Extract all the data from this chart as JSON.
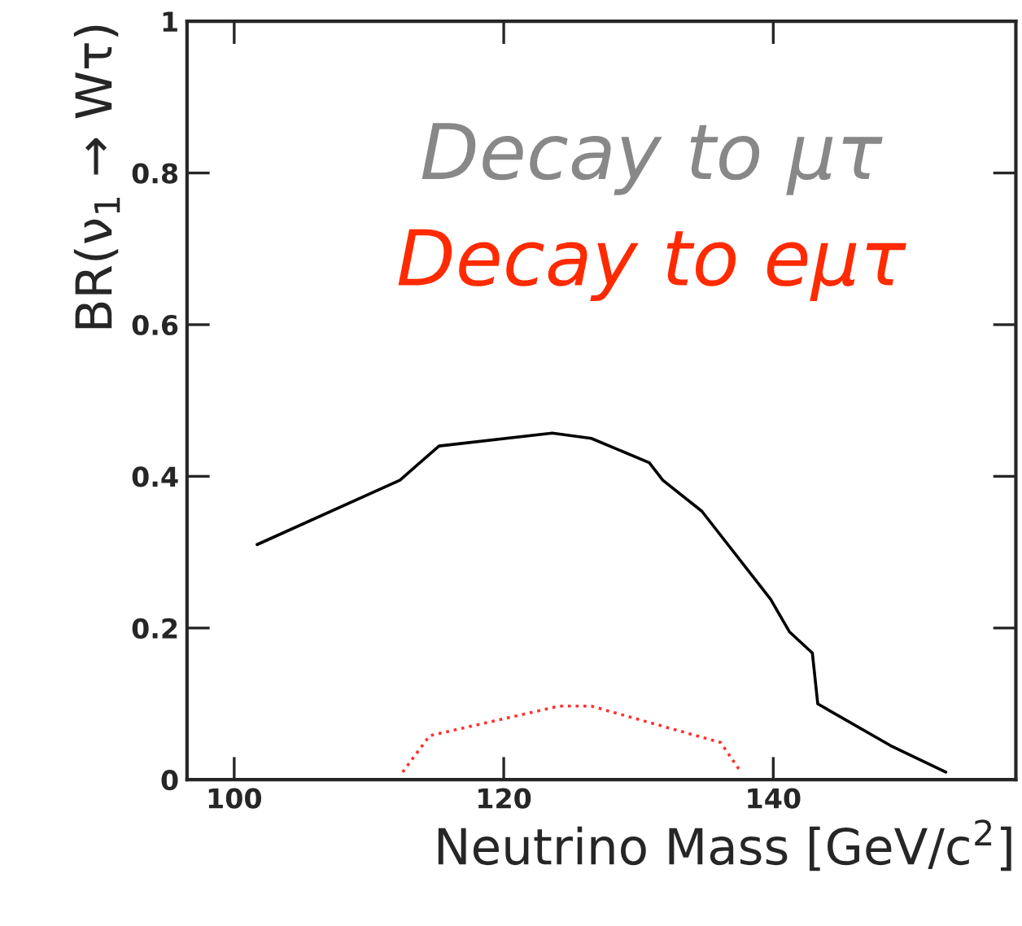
{
  "chart_data": {
    "type": "line",
    "xlabel": "Neutrino Mass [GeV/c$^{2}$]",
    "ylabel": "BR(ν$_{1}$ → Wτ)",
    "annotations": [
      "Decay to μτ",
      "Decay to eμτ"
    ],
    "series": [
      {
        "color": "#000000",
        "line_style": "solid",
        "x": [
          101.7,
          112.3,
          115.2,
          123.6,
          126.5,
          130.8,
          131.8,
          134.7,
          139.8,
          141.2,
          142.9,
          143.3,
          148.7,
          152.8
        ],
        "values": [
          0.31,
          0.395,
          0.44,
          0.457,
          0.45,
          0.418,
          0.395,
          0.354,
          0.238,
          0.195,
          0.167,
          0.1,
          0.045,
          0.01
        ]
      },
      {
        "color": "#ff3030",
        "line_style": "dotted",
        "x": [
          112.5,
          114.5,
          124.1,
          126.5,
          136.1,
          137.6
        ],
        "values": [
          0.01,
          0.058,
          0.097,
          0.097,
          0.049,
          0.01
        ]
      }
    ],
    "xlim": [
      96.5,
      158
    ],
    "xticks": [
      100,
      120,
      140
    ],
    "ylim": [
      0,
      1
    ],
    "yticks": [
      0,
      0.2,
      0.4,
      0.6,
      0.8,
      1
    ],
    "grid": false,
    "legend": false
  }
}
